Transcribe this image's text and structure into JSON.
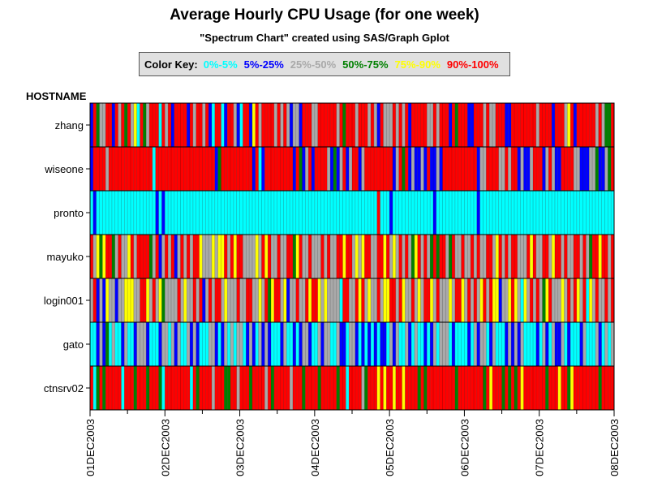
{
  "chart_data": {
    "type": "heatmap",
    "title": "Average Hourly CPU Usage (for one week)",
    "subtitle": "\"Spectrum Chart\" created using SAS/Graph Gplot",
    "ylabel": "HOSTNAME",
    "legend": {
      "label": "Color Key:",
      "placement": "top",
      "entries": [
        {
          "label": "0%-5%",
          "color": "#00ffff"
        },
        {
          "label": "5%-25%",
          "color": "#0000ff"
        },
        {
          "label": "25%-50%",
          "color": "#a9a9a9"
        },
        {
          "label": "50%-75%",
          "color": "#008000"
        },
        {
          "label": "75%-90%",
          "color": "#ffff00"
        },
        {
          "label": "90%-100%",
          "color": "#ff0000"
        }
      ]
    },
    "hosts": [
      "zhang",
      "wiseone",
      "pronto",
      "mayuko",
      "login001",
      "gato",
      "ctnsrv02"
    ],
    "x_ticks": [
      "01DEC2003",
      "02DEC2003",
      "03DEC2003",
      "04DEC2003",
      "05DEC2003",
      "06DEC2003",
      "07DEC2003",
      "08DEC2003"
    ],
    "hours": 168,
    "rows": [
      "153225515253524053255505251555515255251055015521055145255552525212215552255555525355525552521522252525155555225255515355511555252255511555555552555515552451555555252335",
      "155552555555555555550555555555555555555513555555555515015555555551531251555521312512551255555555512535121121511215555555555512255552252551211255512521155552211122311235",
      "010000000000000000000101000000000000000000000000000000000000000000000000000000000000000000005000100000000000001000000000000010000000000000000000000000000000000000000000",
      "524345532522452555532512525125252554222424452545522224254522522553452252225252255455242455225545242525234525235355235225225252255245252552225452255245525225525235545525",
      "251214221224442255425243222252422525125255242225225522425345524122522545542422220552254524225244552542252425542522242554252524525441224542042525234522242525425042522525",
      "001213020012001222100012202120021210002210120202201210212100012001012210021220021102210101010110212002102001012022201000010212201200012121200001021021120100012000210202",
      "503535555505553555355530555555550535555255533552555355552535555525553555535555535505555235554545545545555353555555555355555555354555353535455555553555455345555555535555"
    ]
  }
}
